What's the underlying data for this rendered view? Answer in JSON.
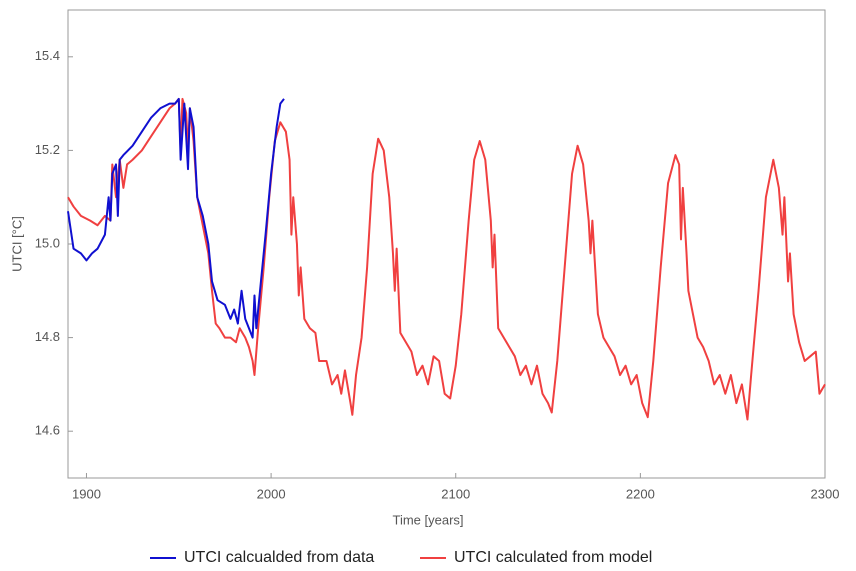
{
  "chart_data": {
    "type": "line",
    "xlabel": "Time [years]",
    "ylabel": "UTCI [°C]",
    "xlim": [
      1890,
      2300
    ],
    "xticks": [
      1900,
      2000,
      2100,
      2200,
      2300
    ],
    "ylim": [
      14.5,
      15.5
    ],
    "yticks": [
      14.6,
      14.8,
      {
        "value": 15,
        "label": "15.0"
      },
      15.2,
      15.4
    ],
    "grid": false,
    "legend": "bottom",
    "series": [
      {
        "name": "UTCI calcualded from data",
        "color": "#1010d0",
        "x": [
          1890,
          1893,
          1897,
          1900,
          1903,
          1906,
          1910,
          1912,
          1913,
          1914,
          1916,
          1917,
          1918,
          1920,
          1925,
          1930,
          1935,
          1940,
          1945,
          1948,
          1950,
          1951,
          1953,
          1955,
          1956,
          1958,
          1960,
          1963,
          1966,
          1968,
          1971,
          1975,
          1978,
          1980,
          1982,
          1984,
          1986,
          1988,
          1990,
          1991,
          1992,
          1994,
          1997,
          2000,
          2003,
          2005,
          2007
        ],
        "values": [
          15.07,
          14.99,
          14.98,
          14.965,
          14.98,
          14.99,
          15.02,
          15.1,
          15.05,
          15.15,
          15.17,
          15.06,
          15.18,
          15.19,
          15.21,
          15.24,
          15.27,
          15.29,
          15.3,
          15.3,
          15.31,
          15.18,
          15.3,
          15.16,
          15.29,
          15.25,
          15.1,
          15.06,
          15.0,
          14.92,
          14.88,
          14.87,
          14.84,
          14.86,
          14.83,
          14.9,
          14.84,
          14.82,
          14.8,
          14.89,
          14.82,
          14.9,
          15.02,
          15.15,
          15.25,
          15.3,
          15.31
        ]
      },
      {
        "name": "UTCI calculated from model",
        "color": "#f04040",
        "x": [
          1890,
          1893,
          1897,
          1902,
          1906,
          1910,
          1913,
          1914,
          1916,
          1918,
          1920,
          1922,
          1925,
          1930,
          1935,
          1940,
          1945,
          1948,
          1950,
          1951,
          1952,
          1954,
          1955,
          1956,
          1958,
          1960,
          1963,
          1966,
          1968,
          1970,
          1972,
          1975,
          1978,
          1981,
          1983,
          1986,
          1988,
          1990,
          1991,
          1993,
          1996,
          1999,
          2002,
          2005,
          2008,
          2010,
          2011,
          2012,
          2014,
          2015,
          2016,
          2018,
          2021,
          2024,
          2026,
          2030,
          2033,
          2036,
          2038,
          2040,
          2043,
          2044,
          2046,
          2049,
          2052,
          2055,
          2058,
          2061,
          2064,
          2066,
          2067,
          2068,
          2070,
          2073,
          2076,
          2079,
          2082,
          2085,
          2088,
          2091,
          2094,
          2097,
          2100,
          2103,
          2107,
          2110,
          2113,
          2116,
          2119,
          2120,
          2121,
          2123,
          2126,
          2129,
          2132,
          2135,
          2138,
          2141,
          2144,
          2147,
          2150,
          2152,
          2155,
          2159,
          2163,
          2166,
          2169,
          2172,
          2173,
          2174,
          2177,
          2180,
          2183,
          2186,
          2189,
          2192,
          2195,
          2198,
          2201,
          2204,
          2207,
          2211,
          2215,
          2219,
          2221,
          2222,
          2223,
          2225,
          2226,
          2228,
          2231,
          2234,
          2237,
          2240,
          2243,
          2246,
          2249,
          2252,
          2255,
          2258,
          2260,
          2264,
          2268,
          2272,
          2275,
          2277,
          2278,
          2280,
          2281,
          2283,
          2286,
          2289,
          2292,
          2295,
          2297,
          2300
        ],
        "values": [
          15.1,
          15.08,
          15.06,
          15.05,
          15.04,
          15.06,
          15.05,
          15.17,
          15.1,
          15.18,
          15.12,
          15.17,
          15.18,
          15.2,
          15.23,
          15.26,
          15.29,
          15.3,
          15.31,
          15.2,
          15.31,
          15.28,
          15.2,
          15.29,
          15.22,
          15.1,
          15.04,
          14.98,
          14.9,
          14.83,
          14.82,
          14.8,
          14.8,
          14.79,
          14.82,
          14.8,
          14.78,
          14.75,
          14.72,
          14.82,
          14.95,
          15.1,
          15.22,
          15.26,
          15.24,
          15.18,
          15.02,
          15.1,
          15.0,
          14.89,
          14.95,
          14.84,
          14.82,
          14.81,
          14.75,
          14.75,
          14.7,
          14.72,
          14.68,
          14.73,
          14.66,
          14.635,
          14.72,
          14.8,
          14.95,
          15.15,
          15.225,
          15.2,
          15.1,
          14.98,
          14.9,
          14.99,
          14.81,
          14.79,
          14.77,
          14.72,
          14.74,
          14.7,
          14.76,
          14.75,
          14.68,
          14.67,
          14.74,
          14.85,
          15.05,
          15.18,
          15.22,
          15.18,
          15.05,
          14.95,
          15.02,
          14.82,
          14.8,
          14.78,
          14.76,
          14.72,
          14.74,
          14.7,
          14.74,
          14.68,
          14.66,
          14.64,
          14.75,
          14.95,
          15.15,
          15.21,
          15.17,
          15.05,
          14.98,
          15.05,
          14.85,
          14.8,
          14.78,
          14.76,
          14.72,
          14.74,
          14.7,
          14.72,
          14.66,
          14.63,
          14.75,
          14.95,
          15.13,
          15.19,
          15.17,
          15.01,
          15.12,
          14.98,
          14.9,
          14.86,
          14.8,
          14.78,
          14.75,
          14.7,
          14.72,
          14.68,
          14.72,
          14.66,
          14.7,
          14.625,
          14.72,
          14.9,
          15.1,
          15.18,
          15.12,
          15.02,
          15.1,
          14.92,
          14.98,
          14.85,
          14.79,
          14.75,
          14.76,
          14.77,
          14.68,
          14.7
        ]
      }
    ]
  }
}
